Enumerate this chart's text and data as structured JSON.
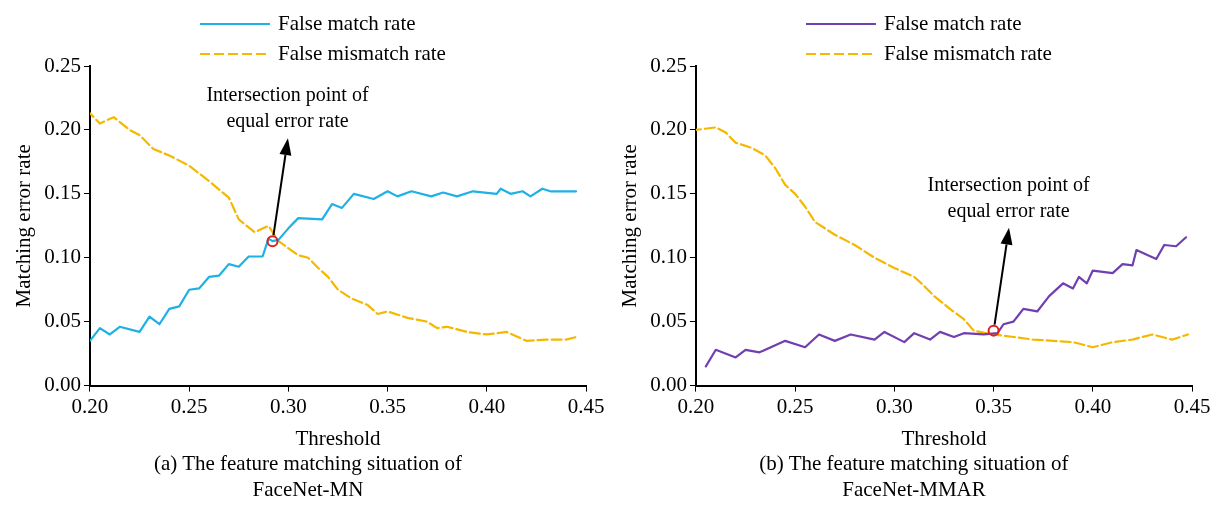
{
  "chart_data": [
    {
      "type": "line",
      "title": "(a) The feature matching situation of FaceNet-MN",
      "xlabel": "Threshold",
      "ylabel": "Matching error rate",
      "xlim": [
        0.2,
        0.45
      ],
      "xticks": [
        {
          "value": 0.2,
          "label": "0.20"
        },
        {
          "value": 0.25,
          "label": "0.25"
        },
        {
          "value": 0.3,
          "label": "0.30"
        },
        {
          "value": 0.35,
          "label": "0.35"
        },
        {
          "value": 0.4,
          "label": "0.40"
        },
        {
          "value": 0.45,
          "label": "0.45"
        }
      ],
      "ylim": [
        0,
        0.25
      ],
      "yticks": [
        {
          "value": 0,
          "label": "0.00"
        },
        {
          "value": 0.05,
          "label": "0.05"
        },
        {
          "value": 0.1,
          "label": "0.10"
        },
        {
          "value": 0.15,
          "label": "0.15"
        },
        {
          "value": 0.2,
          "label": "0.20"
        },
        {
          "value": 0.25,
          "label": "0.25"
        }
      ],
      "grid": false,
      "legend": "top",
      "marker": "none",
      "annotations": [
        {
          "text": "Intersection point of equal error rate",
          "x": 0.292,
          "y": 0.113
        }
      ],
      "series": [
        {
          "name": "False match rate",
          "color": "#1fb0e6",
          "line_style": "solid",
          "x": [
            0.2,
            0.205,
            0.21,
            0.215,
            0.225,
            0.23,
            0.235,
            0.24,
            0.245,
            0.25,
            0.255,
            0.26,
            0.265,
            0.27,
            0.275,
            0.28,
            0.287,
            0.29,
            0.292,
            0.295,
            0.3,
            0.305,
            0.317,
            0.322,
            0.327,
            0.333,
            0.343,
            0.35,
            0.355,
            0.362,
            0.372,
            0.378,
            0.385,
            0.393,
            0.405,
            0.407,
            0.412,
            0.418,
            0.422,
            0.428,
            0.432,
            0.445
          ],
          "values": [
            0.035,
            0.045,
            0.04,
            0.046,
            0.042,
            0.054,
            0.048,
            0.06,
            0.062,
            0.075,
            0.076,
            0.085,
            0.086,
            0.095,
            0.093,
            0.101,
            0.101,
            0.115,
            0.113,
            0.114,
            0.123,
            0.131,
            0.13,
            0.142,
            0.139,
            0.15,
            0.146,
            0.152,
            0.148,
            0.152,
            0.148,
            0.151,
            0.148,
            0.152,
            0.15,
            0.154,
            0.15,
            0.152,
            0.148,
            0.154,
            0.152,
            0.152
          ]
        },
        {
          "name": "False mismatch rate",
          "color": "#f5b800",
          "line_style": "dashed",
          "x": [
            0.2,
            0.205,
            0.212,
            0.22,
            0.225,
            0.232,
            0.24,
            0.25,
            0.26,
            0.27,
            0.275,
            0.283,
            0.29,
            0.295,
            0.305,
            0.31,
            0.315,
            0.32,
            0.325,
            0.332,
            0.34,
            0.345,
            0.35,
            0.36,
            0.37,
            0.375,
            0.38,
            0.39,
            0.4,
            0.41,
            0.42,
            0.43,
            0.44,
            0.445
          ],
          "values": [
            0.213,
            0.205,
            0.21,
            0.2,
            0.196,
            0.185,
            0.18,
            0.172,
            0.16,
            0.147,
            0.13,
            0.12,
            0.125,
            0.113,
            0.102,
            0.1,
            0.092,
            0.085,
            0.075,
            0.068,
            0.063,
            0.056,
            0.058,
            0.053,
            0.05,
            0.045,
            0.046,
            0.042,
            0.04,
            0.042,
            0.035,
            0.036,
            0.036,
            0.038
          ]
        }
      ]
    },
    {
      "type": "line",
      "title": "(b) The feature matching situation of FaceNet-MMAR",
      "xlabel": "Threshold",
      "ylabel": "Matching error rate",
      "xlim": [
        0.2,
        0.45
      ],
      "xticks": [
        {
          "value": 0.2,
          "label": "0.20"
        },
        {
          "value": 0.25,
          "label": "0.25"
        },
        {
          "value": 0.3,
          "label": "0.30"
        },
        {
          "value": 0.35,
          "label": "0.35"
        },
        {
          "value": 0.4,
          "label": "0.40"
        },
        {
          "value": 0.45,
          "label": "0.45"
        }
      ],
      "ylim": [
        0,
        0.25
      ],
      "yticks": [
        {
          "value": 0,
          "label": "0.00"
        },
        {
          "value": 0.05,
          "label": "0.05"
        },
        {
          "value": 0.1,
          "label": "0.10"
        },
        {
          "value": 0.15,
          "label": "0.15"
        },
        {
          "value": 0.2,
          "label": "0.20"
        },
        {
          "value": 0.25,
          "label": "0.25"
        }
      ],
      "grid": false,
      "legend": "top",
      "marker": "none",
      "annotations": [
        {
          "text": "Intersection point of equal error rate",
          "x": 0.35,
          "y": 0.043
        }
      ],
      "series": [
        {
          "name": "False match rate",
          "color": "#7040b0",
          "line_style": "solid",
          "x": [
            0.205,
            0.21,
            0.22,
            0.225,
            0.232,
            0.245,
            0.255,
            0.262,
            0.27,
            0.278,
            0.29,
            0.295,
            0.305,
            0.31,
            0.318,
            0.323,
            0.33,
            0.335,
            0.345,
            0.352,
            0.355,
            0.36,
            0.365,
            0.372,
            0.378,
            0.385,
            0.39,
            0.393,
            0.397,
            0.4,
            0.41,
            0.415,
            0.42,
            0.422,
            0.432,
            0.436,
            0.442,
            0.447
          ],
          "values": [
            0.015,
            0.028,
            0.022,
            0.028,
            0.026,
            0.035,
            0.03,
            0.04,
            0.035,
            0.04,
            0.036,
            0.042,
            0.034,
            0.041,
            0.036,
            0.042,
            0.038,
            0.041,
            0.04,
            0.041,
            0.048,
            0.05,
            0.06,
            0.058,
            0.07,
            0.08,
            0.076,
            0.085,
            0.08,
            0.09,
            0.088,
            0.095,
            0.094,
            0.106,
            0.099,
            0.11,
            0.109,
            0.116
          ]
        },
        {
          "name": "False mismatch rate",
          "color": "#f5b800",
          "line_style": "dashed",
          "x": [
            0.2,
            0.21,
            0.215,
            0.22,
            0.228,
            0.235,
            0.24,
            0.245,
            0.25,
            0.255,
            0.26,
            0.27,
            0.28,
            0.29,
            0.3,
            0.31,
            0.315,
            0.32,
            0.328,
            0.335,
            0.34,
            0.35,
            0.36,
            0.37,
            0.38,
            0.39,
            0.4,
            0.41,
            0.42,
            0.43,
            0.44,
            0.448
          ],
          "values": [
            0.2,
            0.202,
            0.198,
            0.19,
            0.186,
            0.18,
            0.17,
            0.157,
            0.15,
            0.14,
            0.128,
            0.118,
            0.11,
            0.1,
            0.092,
            0.085,
            0.078,
            0.07,
            0.06,
            0.052,
            0.043,
            0.04,
            0.038,
            0.036,
            0.035,
            0.034,
            0.03,
            0.034,
            0.036,
            0.04,
            0.036,
            0.04
          ]
        }
      ]
    }
  ]
}
